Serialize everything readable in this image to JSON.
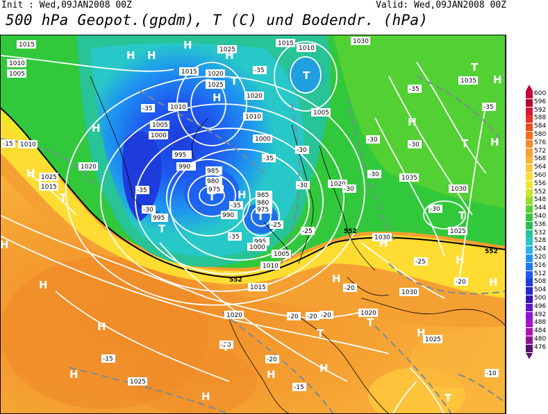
{
  "header": {
    "init": "Init : Wed,09JAN2008 00Z",
    "valid": "Valid: Wed,09JAN2008 00Z",
    "title": "500 hPa Geopot.(gpdm), T (C) und Bodendr. (hPa)"
  },
  "scale": {
    "labels": [
      "600",
      "596",
      "592",
      "588",
      "584",
      "580",
      "576",
      "572",
      "568",
      "564",
      "560",
      "556",
      "552",
      "548",
      "544",
      "540",
      "536",
      "532",
      "528",
      "524",
      "520",
      "516",
      "512",
      "508",
      "504",
      "500",
      "496",
      "492",
      "488",
      "484",
      "480",
      "476"
    ],
    "colors": [
      "#c8003c",
      "#b40032",
      "#dc143c",
      "#e63228",
      "#f04b1e",
      "#f56e1e",
      "#f08c28",
      "#f5a032",
      "#fab43c",
      "#ffc83c",
      "#ffdc32",
      "#f0e628",
      "#c8e628",
      "#96dc28",
      "#5ad232",
      "#32c83c",
      "#28be5a",
      "#28c396",
      "#28c8c8",
      "#28b4e6",
      "#1e96f0",
      "#1e78f0",
      "#1e5af0",
      "#1e3cdc",
      "#2828c8",
      "#3c14b4",
      "#6414c8",
      "#8c14d2",
      "#aa14c8",
      "#b414b4",
      "#8c148c",
      "#5a146e"
    ]
  },
  "map": {
    "pressure_labels": [
      "1015",
      "1010",
      "1005",
      "1025",
      "1015",
      "1010",
      "1030",
      "1020",
      "1025",
      "1015",
      "1010",
      "1005",
      "1000",
      "1020",
      "1010",
      "1005",
      "1000",
      "995",
      "990",
      "985",
      "980",
      "975",
      "985",
      "980",
      "975",
      "990",
      "995",
      "1000",
      "1005",
      "1010",
      "1015",
      "1020",
      "1025",
      "1030",
      "1035",
      "1035",
      "1030",
      "1025",
      "1030",
      "1025",
      "1020",
      "1020",
      "1025",
      "1010",
      "995",
      "1015",
      "1020"
    ],
    "temp_labels": [
      "-35",
      "-35",
      "-30",
      "-30",
      "-25",
      "-35",
      "-35",
      "-30",
      "-35",
      "-30",
      "-30",
      "-35",
      "-30",
      "-30",
      "-35",
      "-25",
      "-35",
      "-30",
      "-25",
      "-20",
      "-20",
      "-20",
      "-20",
      "-20",
      "-15",
      "-15",
      "-20",
      "-15",
      "-10",
      "-30",
      "-30",
      "-35",
      "-35",
      "-30",
      "-30",
      "-35",
      "-35",
      "-25",
      "-20",
      "-15"
    ],
    "height_labels": [
      "552",
      "552",
      "552",
      "552"
    ],
    "highs": [
      "H",
      "H",
      "H",
      "H",
      "H",
      "H",
      "H",
      "H",
      "H",
      "H",
      "H",
      "H",
      "H",
      "H",
      "H",
      "H",
      "H",
      "H",
      "H",
      "H",
      "H",
      "H",
      "H"
    ],
    "lows": [
      "T",
      "T",
      "T",
      "T",
      "T",
      "T",
      "T",
      "T",
      "T",
      "T",
      "T",
      "T",
      "T"
    ]
  }
}
